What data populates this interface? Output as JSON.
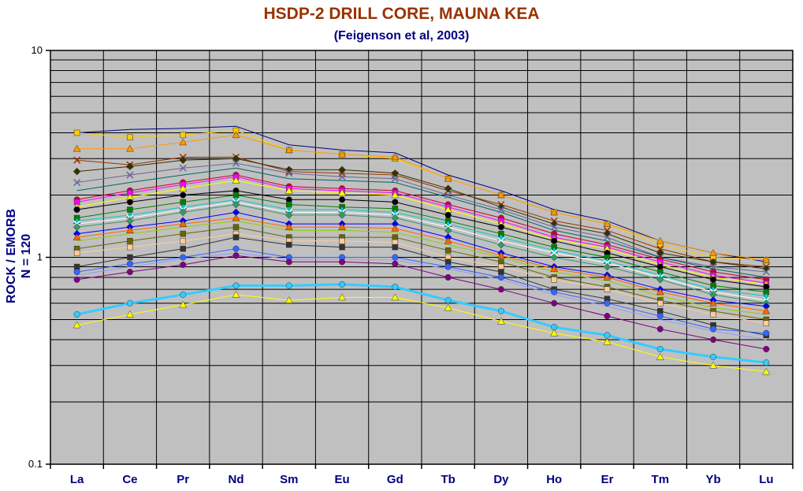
{
  "chart_data": {
    "type": "line",
    "title": "HSDP-2 DRILL CORE, MAUNA KEA",
    "subtitle": "(Feigenson et al, 2003)",
    "ylabel": "ROCK / EMORB\nN = 120",
    "xlabel": "",
    "yscale": "log",
    "ylim": [
      0.1,
      10
    ],
    "ytick_labels": [
      "0.1",
      "1",
      "10"
    ],
    "categories": [
      "La",
      "Ce",
      "Pr",
      "Nd",
      "Sm",
      "Eu",
      "Gd",
      "Tb",
      "Dy",
      "Ho",
      "Er",
      "Tm",
      "Yb",
      "Lu"
    ],
    "grid": true,
    "legend": "none",
    "plot_background": "#c0c0c0",
    "series": [
      {
        "color": "#000080",
        "marker": "none",
        "values": [
          4.0,
          4.15,
          4.2,
          4.3,
          3.5,
          3.3,
          3.2,
          2.5,
          2.1,
          1.7,
          1.5,
          1.2,
          1.05,
          0.95
        ]
      },
      {
        "color": "#ffcc00",
        "marker": "square",
        "values": [
          4.0,
          3.8,
          3.9,
          4.1,
          3.3,
          3.15,
          3.0,
          2.4,
          2.0,
          1.65,
          1.45,
          1.15,
          1.0,
          0.97
        ]
      },
      {
        "color": "#ff9900",
        "marker": "triangle",
        "values": [
          3.35,
          3.35,
          3.6,
          3.9,
          3.3,
          3.15,
          3.05,
          2.4,
          2.0,
          1.65,
          1.45,
          1.2,
          1.05,
          0.97
        ]
      },
      {
        "color": "#993300",
        "marker": "x",
        "values": [
          2.95,
          2.8,
          3.05,
          3.05,
          2.6,
          2.55,
          2.5,
          2.1,
          1.8,
          1.5,
          1.35,
          1.1,
          0.95,
          0.9
        ]
      },
      {
        "color": "#333300",
        "marker": "diamond",
        "values": [
          2.6,
          2.75,
          2.95,
          3.0,
          2.65,
          2.65,
          2.55,
          2.15,
          1.75,
          1.45,
          1.3,
          1.05,
          0.95,
          0.88
        ]
      },
      {
        "color": "#666699",
        "marker": "x",
        "values": [
          2.3,
          2.5,
          2.7,
          2.85,
          2.55,
          2.45,
          2.4,
          2.0,
          1.7,
          1.4,
          1.25,
          1.0,
          0.9,
          0.85
        ]
      },
      {
        "color": "#006666",
        "marker": "none",
        "values": [
          2.1,
          2.3,
          2.5,
          2.7,
          2.4,
          2.35,
          2.3,
          1.95,
          1.65,
          1.35,
          1.2,
          1.0,
          0.88,
          0.8
        ]
      },
      {
        "color": "#cc0033",
        "marker": "circle",
        "values": [
          1.9,
          2.1,
          2.3,
          2.5,
          2.2,
          2.15,
          2.1,
          1.8,
          1.55,
          1.3,
          1.15,
          0.98,
          0.85,
          0.78
        ]
      },
      {
        "color": "#ff00ff",
        "marker": "square",
        "values": [
          1.85,
          2.05,
          2.25,
          2.45,
          2.15,
          2.1,
          2.05,
          1.75,
          1.5,
          1.25,
          1.12,
          0.95,
          0.82,
          0.75
        ]
      },
      {
        "color": "#ffff00",
        "marker": "triangle",
        "values": [
          1.75,
          1.95,
          2.15,
          2.35,
          2.1,
          2.05,
          2.0,
          1.7,
          1.45,
          1.22,
          1.1,
          0.92,
          0.8,
          0.74
        ]
      },
      {
        "color": "#000000",
        "marker": "circle",
        "values": [
          1.7,
          1.85,
          2.0,
          2.1,
          1.9,
          1.9,
          1.85,
          1.6,
          1.4,
          1.2,
          1.05,
          0.9,
          0.78,
          0.72
        ]
      },
      {
        "color": "#008000",
        "marker": "square",
        "values": [
          1.55,
          1.7,
          1.85,
          2.0,
          1.8,
          1.75,
          1.72,
          1.5,
          1.3,
          1.12,
          1.0,
          0.85,
          0.73,
          0.68
        ]
      },
      {
        "color": "#00cccc",
        "marker": "triangle",
        "values": [
          1.5,
          1.6,
          1.75,
          1.9,
          1.7,
          1.7,
          1.65,
          1.45,
          1.25,
          1.08,
          0.96,
          0.82,
          0.7,
          0.65
        ]
      },
      {
        "color": "#ffffff",
        "marker": "x",
        "values": [
          1.45,
          1.55,
          1.7,
          1.85,
          1.65,
          1.65,
          1.6,
          1.4,
          1.2,
          1.05,
          0.94,
          0.8,
          0.68,
          0.62
        ]
      },
      {
        "color": "#339966",
        "marker": "diamond",
        "values": [
          1.4,
          1.5,
          1.65,
          1.8,
          1.6,
          1.6,
          1.55,
          1.35,
          1.15,
          1.0,
          0.9,
          0.78,
          0.66,
          0.6
        ]
      },
      {
        "color": "#0000ff",
        "marker": "diamond",
        "values": [
          1.3,
          1.4,
          1.5,
          1.65,
          1.45,
          1.45,
          1.45,
          1.25,
          1.05,
          0.9,
          0.82,
          0.7,
          0.62,
          0.58
        ]
      },
      {
        "color": "#ff6600",
        "marker": "triangle",
        "values": [
          1.25,
          1.35,
          1.45,
          1.55,
          1.4,
          1.4,
          1.38,
          1.2,
          1.02,
          0.88,
          0.8,
          0.68,
          0.6,
          0.55
        ]
      },
      {
        "color": "#99cc00",
        "marker": "none",
        "values": [
          1.2,
          1.3,
          1.4,
          1.5,
          1.35,
          1.35,
          1.32,
          1.15,
          1.0,
          0.85,
          0.77,
          0.65,
          0.57,
          0.53
        ]
      },
      {
        "color": "#666600",
        "marker": "square",
        "values": [
          1.1,
          1.2,
          1.3,
          1.4,
          1.25,
          1.25,
          1.25,
          1.08,
          0.95,
          0.8,
          0.72,
          0.62,
          0.55,
          0.5
        ]
      },
      {
        "color": "#ffcc99",
        "marker": "square",
        "values": [
          1.05,
          1.12,
          1.2,
          1.3,
          1.2,
          1.2,
          1.18,
          1.0,
          0.9,
          0.78,
          0.7,
          0.6,
          0.53,
          0.48
        ]
      },
      {
        "color": "#333333",
        "marker": "square",
        "values": [
          0.9,
          1.0,
          1.1,
          1.25,
          1.15,
          1.12,
          1.12,
          0.95,
          0.85,
          0.7,
          0.63,
          0.55,
          0.47,
          0.42
        ]
      },
      {
        "color": "#3366ff",
        "marker": "circle",
        "values": [
          0.85,
          0.93,
          1.0,
          1.1,
          1.0,
          1.0,
          1.0,
          0.9,
          0.8,
          0.68,
          0.6,
          0.52,
          0.45,
          0.43
        ]
      },
      {
        "color": "#9999ff",
        "marker": "none",
        "values": [
          0.82,
          0.9,
          0.98,
          1.05,
          0.98,
          0.98,
          0.97,
          0.88,
          0.78,
          0.66,
          0.58,
          0.5,
          0.44,
          0.4
        ]
      },
      {
        "color": "#800080",
        "marker": "circle",
        "values": [
          0.78,
          0.85,
          0.92,
          1.02,
          0.95,
          0.95,
          0.93,
          0.8,
          0.7,
          0.6,
          0.52,
          0.45,
          0.4,
          0.36
        ]
      },
      {
        "color": "#33ccff",
        "marker": "circle",
        "lineWidth": 3,
        "values": [
          0.53,
          0.6,
          0.66,
          0.73,
          0.73,
          0.74,
          0.72,
          0.62,
          0.55,
          0.46,
          0.42,
          0.36,
          0.33,
          0.31
        ]
      },
      {
        "color": "#ffff00",
        "marker": "triangle",
        "lineWidth": 1,
        "values": [
          0.47,
          0.53,
          0.59,
          0.66,
          0.62,
          0.64,
          0.64,
          0.57,
          0.49,
          0.43,
          0.39,
          0.33,
          0.3,
          0.28
        ]
      }
    ]
  }
}
